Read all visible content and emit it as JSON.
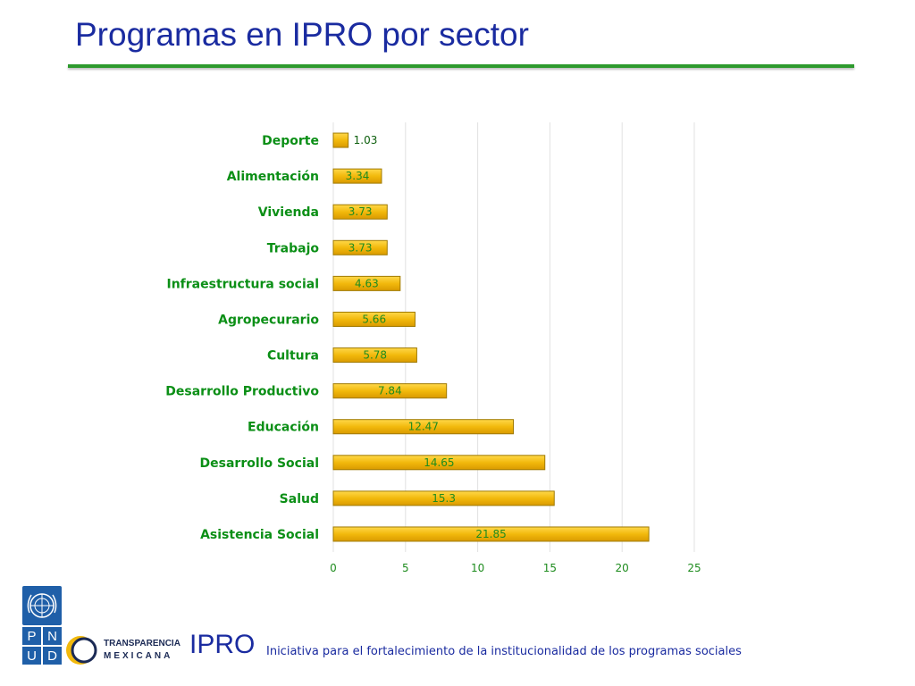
{
  "slide": {
    "title": "Programas en IPRO por sector"
  },
  "chart_data": {
    "type": "bar",
    "orientation": "horizontal",
    "categories": [
      "Deporte",
      "Alimentación",
      "Vivienda",
      "Trabajo",
      "Infraestructura social",
      "Agropecurario",
      "Cultura",
      "Desarrollo Productivo",
      "Educación",
      "Desarrollo Social",
      "Salud",
      "Asistencia Social"
    ],
    "values": [
      1.03,
      3.34,
      3.73,
      3.73,
      4.63,
      5.66,
      5.78,
      7.84,
      12.47,
      14.65,
      15.3,
      21.85
    ],
    "value_labels": [
      "1.03",
      "3.34",
      "3.73",
      "3.73",
      "4.63",
      "5.66",
      "5.78",
      "7.84",
      "12.47",
      "14.65",
      "15.3",
      "21.85"
    ],
    "xlim": [
      0,
      25
    ],
    "x_ticks": [
      0,
      5,
      10,
      15,
      20,
      25
    ],
    "x_tick_labels": [
      "0",
      "5",
      "10",
      "15",
      "20",
      "25"
    ],
    "grid": "vertical",
    "legend": "none",
    "colors": {
      "bar": "#f2b90c",
      "bar_border": "#a07a00",
      "category_label": "#0b8f16",
      "value_label": "#1e8c1e",
      "tick_label": "#1e8c1e",
      "gridline": "#e2e2e2"
    }
  },
  "footer": {
    "pnud_letters": [
      "P",
      "N",
      "U",
      "D"
    ],
    "tm_line1": "TRANSPARENCIA",
    "tm_line2": "MEXICANA",
    "brand": "IPRO",
    "tagline": "Iniciativa para el fortalecimiento de la institucionalidad de los programas sociales"
  }
}
